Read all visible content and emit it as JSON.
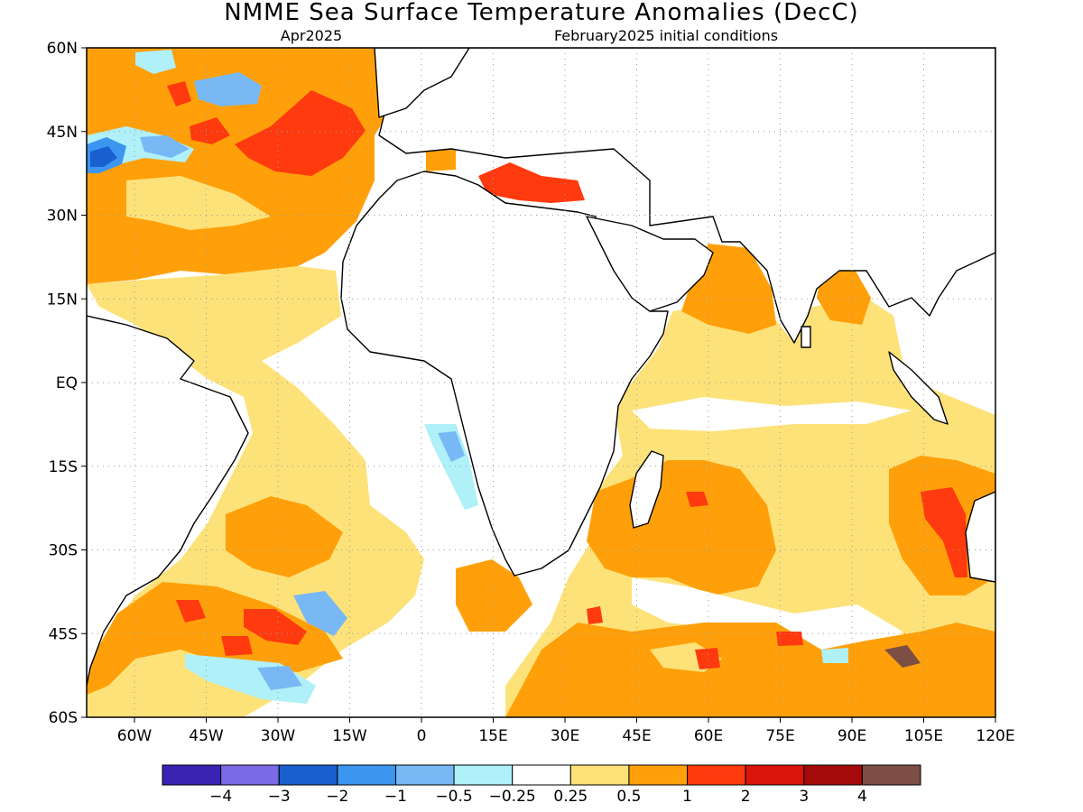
{
  "figure": {
    "title": "NMME Sea Surface Temperature Anomalies (DecC)",
    "subtitle_left": "Apr2025",
    "subtitle_right": "February2025 initial conditions"
  },
  "map": {
    "lon_range": [
      -70,
      120
    ],
    "lat_range": [
      -60,
      60
    ],
    "lat_ticks": [
      {
        "value": 60,
        "label": "60N"
      },
      {
        "value": 45,
        "label": "45N"
      },
      {
        "value": 30,
        "label": "30N"
      },
      {
        "value": 15,
        "label": "15N"
      },
      {
        "value": 0,
        "label": "EQ"
      },
      {
        "value": -15,
        "label": "15S"
      },
      {
        "value": -30,
        "label": "30S"
      },
      {
        "value": -45,
        "label": "45S"
      },
      {
        "value": -60,
        "label": "60S"
      }
    ],
    "lon_ticks": [
      {
        "value": -60,
        "label": "60W"
      },
      {
        "value": -45,
        "label": "45W"
      },
      {
        "value": -30,
        "label": "30W"
      },
      {
        "value": -15,
        "label": "15W"
      },
      {
        "value": 0,
        "label": "0"
      },
      {
        "value": 15,
        "label": "15E"
      },
      {
        "value": 30,
        "label": "30E"
      },
      {
        "value": 45,
        "label": "45E"
      },
      {
        "value": 60,
        "label": "60E"
      },
      {
        "value": 75,
        "label": "75E"
      },
      {
        "value": 90,
        "label": "90E"
      },
      {
        "value": 105,
        "label": "105E"
      },
      {
        "value": 120,
        "label": "120E"
      }
    ],
    "grid": true,
    "land_color": "#ffffff",
    "coastline_color": "#000000"
  },
  "colorbar": {
    "colors": [
      "#3a22b3",
      "#7a6ae6",
      "#1a5fd0",
      "#3c96f0",
      "#78b9f5",
      "#b0f0f8",
      "#ffffff",
      "#fde27a",
      "#ffa00a",
      "#ff3a0e",
      "#dc150a",
      "#a50a0a",
      "#7d4e44"
    ],
    "tick_labels": [
      "−4",
      "−3",
      "−2",
      "−1",
      "−0.5",
      "−0.25",
      "0.25",
      "0.5",
      "1",
      "2",
      "3",
      "4"
    ]
  },
  "anomaly_regions": [
    {
      "level": "0.5",
      "color": "#ffa00a",
      "region": "north atlantic",
      "lon": [
        -70,
        -10
      ],
      "lat": [
        20,
        60
      ]
    },
    {
      "level": "1",
      "color": "#ff3a0e",
      "region": "north atlantic 40-50N",
      "lon": [
        -30,
        -15
      ],
      "lat": [
        38,
        48
      ]
    },
    {
      "level": "-1",
      "color": "#3c96f0",
      "region": "gulf stream",
      "lon": [
        -70,
        -60
      ],
      "lat": [
        38,
        44
      ]
    },
    {
      "level": "1",
      "color": "#ff3a0e",
      "region": "mediterranean",
      "lon": [
        15,
        35
      ],
      "lat": [
        32,
        38
      ]
    },
    {
      "level": "0.25",
      "color": "#fde27a",
      "region": "tropical atlantic",
      "lon": [
        -55,
        -5
      ],
      "lat": [
        -30,
        15
      ]
    },
    {
      "level": "0.5",
      "color": "#ffa00a",
      "region": "arabian sea",
      "lon": [
        55,
        73
      ],
      "lat": [
        8,
        25
      ]
    },
    {
      "level": "0.5",
      "color": "#ffa00a",
      "region": "bay of bengal",
      "lon": [
        80,
        92
      ],
      "lat": [
        10,
        20
      ]
    },
    {
      "level": "0.25",
      "color": "#fde27a",
      "region": "equatorial indian ocean",
      "lon": [
        40,
        120
      ],
      "lat": [
        -15,
        10
      ]
    },
    {
      "level": "0.5",
      "color": "#ffa00a",
      "region": "southwest indian ocean",
      "lon": [
        32,
        80
      ],
      "lat": [
        -40,
        -15
      ]
    },
    {
      "level": "1",
      "color": "#ff3a0e",
      "region": "west australia",
      "lon": [
        108,
        115
      ],
      "lat": [
        -38,
        -20
      ]
    },
    {
      "level": "0.5",
      "color": "#ffa00a",
      "region": "southern ocean",
      "lon": [
        20,
        120
      ],
      "lat": [
        -60,
        -40
      ]
    },
    {
      "level": "1",
      "color": "#ff3a0e",
      "region": "south atlantic 40-45S",
      "lon": [
        -55,
        -20
      ],
      "lat": [
        -47,
        -38
      ]
    },
    {
      "level": "-0.5",
      "color": "#78b9f5",
      "region": "south atlantic cold",
      "lon": [
        -40,
        -15
      ],
      "lat": [
        -58,
        -40
      ]
    }
  ]
}
